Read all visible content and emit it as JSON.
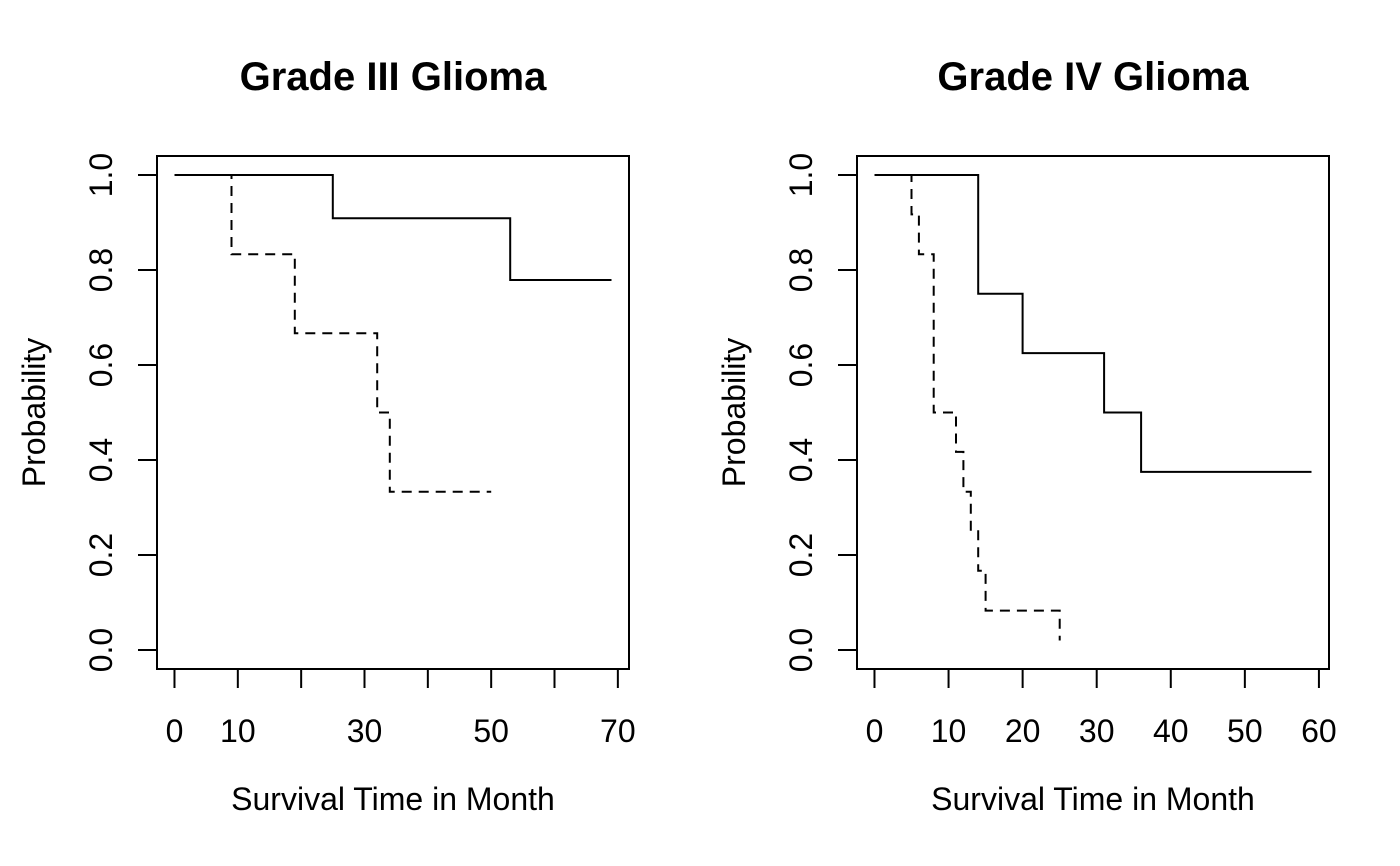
{
  "figure": {
    "background_color": "#ffffff",
    "line_color": "#000000",
    "text_color": "#000000"
  },
  "chart_data": [
    {
      "type": "line",
      "chart_style": "kaplan-meier-step",
      "title": "Grade III Glioma",
      "xlabel": "Survival Time in Month",
      "ylabel": "Probability",
      "xlim": [
        0,
        69
      ],
      "ylim": [
        0,
        1
      ],
      "axis_padding_fraction": 0.04,
      "grid": false,
      "legend_position": "none",
      "x_ticks": [
        0,
        10,
        20,
        30,
        40,
        50,
        60,
        70
      ],
      "x_tick_labels": [
        "0",
        "10",
        "",
        "30",
        "",
        "50",
        "",
        "70"
      ],
      "y_ticks": [
        0,
        0.2,
        0.4,
        0.6,
        0.8,
        1
      ],
      "y_tick_labels": [
        "0.0",
        "0.2",
        "0.4",
        "0.6",
        "0.8",
        "1.0"
      ],
      "series": [
        {
          "name": "grade3-solid-group",
          "line_style": "solid",
          "points": [
            [
              0,
              1
            ],
            [
              25,
              1
            ],
            [
              25,
              0.909
            ],
            [
              53,
              0.909
            ],
            [
              53,
              0.779
            ],
            [
              69,
              0.779
            ]
          ]
        },
        {
          "name": "grade3-dashed-group",
          "line_style": "dashed",
          "points": [
            [
              0,
              1
            ],
            [
              9,
              1
            ],
            [
              9,
              0.833
            ],
            [
              19,
              0.833
            ],
            [
              19,
              0.667
            ],
            [
              32,
              0.667
            ],
            [
              32,
              0.5
            ],
            [
              34,
              0.5
            ],
            [
              34,
              0.333
            ],
            [
              50,
              0.333
            ]
          ]
        }
      ]
    },
    {
      "type": "line",
      "chart_style": "kaplan-meier-step",
      "title": "Grade IV Glioma",
      "xlabel": "Survival Time in Month",
      "ylabel": "Probability",
      "xlim": [
        0,
        59
      ],
      "ylim": [
        0,
        1
      ],
      "axis_padding_fraction": 0.04,
      "grid": false,
      "legend_position": "none",
      "x_ticks": [
        0,
        10,
        20,
        30,
        40,
        50,
        60
      ],
      "x_tick_labels": [
        "0",
        "10",
        "20",
        "30",
        "40",
        "50",
        "60"
      ],
      "y_ticks": [
        0,
        0.2,
        0.4,
        0.6,
        0.8,
        1
      ],
      "y_tick_labels": [
        "0.0",
        "0.2",
        "0.4",
        "0.6",
        "0.8",
        "1.0"
      ],
      "series": [
        {
          "name": "grade4-solid-group",
          "line_style": "solid",
          "points": [
            [
              0,
              1
            ],
            [
              14,
              1
            ],
            [
              14,
              0.75
            ],
            [
              20,
              0.75
            ],
            [
              20,
              0.625
            ],
            [
              31,
              0.625
            ],
            [
              31,
              0.5
            ],
            [
              36,
              0.5
            ],
            [
              36,
              0.375
            ],
            [
              59,
              0.375
            ]
          ]
        },
        {
          "name": "grade4-dashed-group",
          "line_style": "dashed",
          "points": [
            [
              0,
              1
            ],
            [
              5,
              1
            ],
            [
              5,
              0.917
            ],
            [
              6,
              0.917
            ],
            [
              6,
              0.833
            ],
            [
              8,
              0.833
            ],
            [
              8,
              0.5
            ],
            [
              11,
              0.5
            ],
            [
              11,
              0.417
            ],
            [
              12,
              0.417
            ],
            [
              12,
              0.333
            ],
            [
              13,
              0.333
            ],
            [
              13,
              0.25
            ],
            [
              14,
              0.25
            ],
            [
              14,
              0.167
            ],
            [
              15,
              0.167
            ],
            [
              15,
              0.083
            ],
            [
              25,
              0.083
            ],
            [
              25,
              0.02
            ]
          ]
        }
      ]
    }
  ]
}
